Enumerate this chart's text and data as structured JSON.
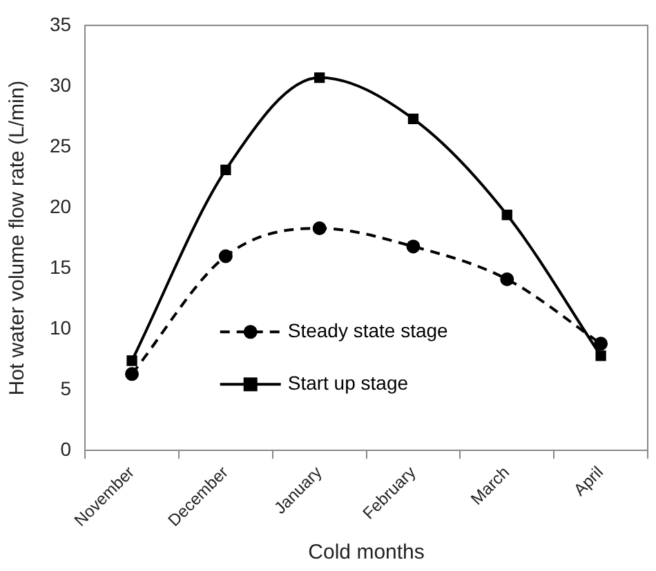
{
  "chart_data": {
    "type": "line",
    "xlabel": "Cold months",
    "ylabel": "Hot water volume flow rate (L/min)",
    "categories": [
      "November",
      "December",
      "January",
      "February",
      "March",
      "April"
    ],
    "series": [
      {
        "name": "Steady state stage",
        "color": "#000000",
        "marker": "circle",
        "line_style": "dashed",
        "values": [
          6.3,
          16.0,
          18.3,
          16.8,
          14.1,
          8.8
        ]
      },
      {
        "name": "Start up stage",
        "color": "#000000",
        "marker": "square",
        "line_style": "solid",
        "values": [
          7.4,
          23.1,
          30.7,
          27.3,
          19.4,
          7.8
        ]
      }
    ],
    "ylim": [
      0,
      35
    ],
    "yticks": [
      0,
      5,
      10,
      15,
      20,
      25,
      30,
      35
    ],
    "grid": false,
    "legend": "bottom"
  }
}
